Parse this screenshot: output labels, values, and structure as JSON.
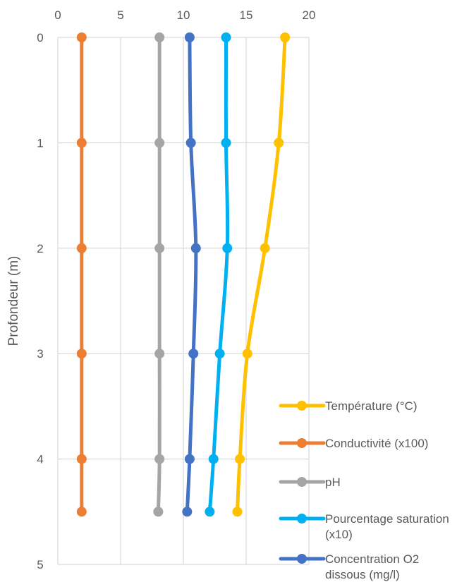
{
  "chart_data": {
    "type": "line",
    "title": "",
    "xlabel": "",
    "ylabel": "Profondeur (m)",
    "xlim": [
      0,
      20
    ],
    "ylim": [
      0,
      5
    ],
    "y_inverted": true,
    "x_axis_position": "top",
    "x_ticks": [
      0,
      5,
      10,
      15,
      20
    ],
    "y_ticks": [
      0,
      1,
      2,
      3,
      4,
      5
    ],
    "grid": true,
    "legend_position": "bottom-right",
    "depths": [
      0,
      1,
      2,
      3,
      4,
      4.5
    ],
    "series": [
      {
        "name": "Température (°C)",
        "color": "#FFC000",
        "values": [
          18.1,
          17.6,
          16.5,
          15.1,
          14.5,
          14.3
        ]
      },
      {
        "name": "Conductivité (x100)",
        "color": "#ED7D31",
        "values": [
          1.9,
          1.9,
          1.9,
          1.9,
          1.9,
          1.9
        ]
      },
      {
        "name": "pH",
        "color": "#A5A5A5",
        "values": [
          8.1,
          8.1,
          8.1,
          8.1,
          8.1,
          8.0
        ]
      },
      {
        "name": "Pourcentage saturation (x10)",
        "color": "#00B0F0",
        "values": [
          13.4,
          13.4,
          13.5,
          12.9,
          12.4,
          12.1
        ]
      },
      {
        "name": "Concentration O2 dissous (mg/l)",
        "color": "#4472C4",
        "values": [
          10.5,
          10.6,
          11.0,
          10.8,
          10.5,
          10.3
        ]
      }
    ]
  }
}
